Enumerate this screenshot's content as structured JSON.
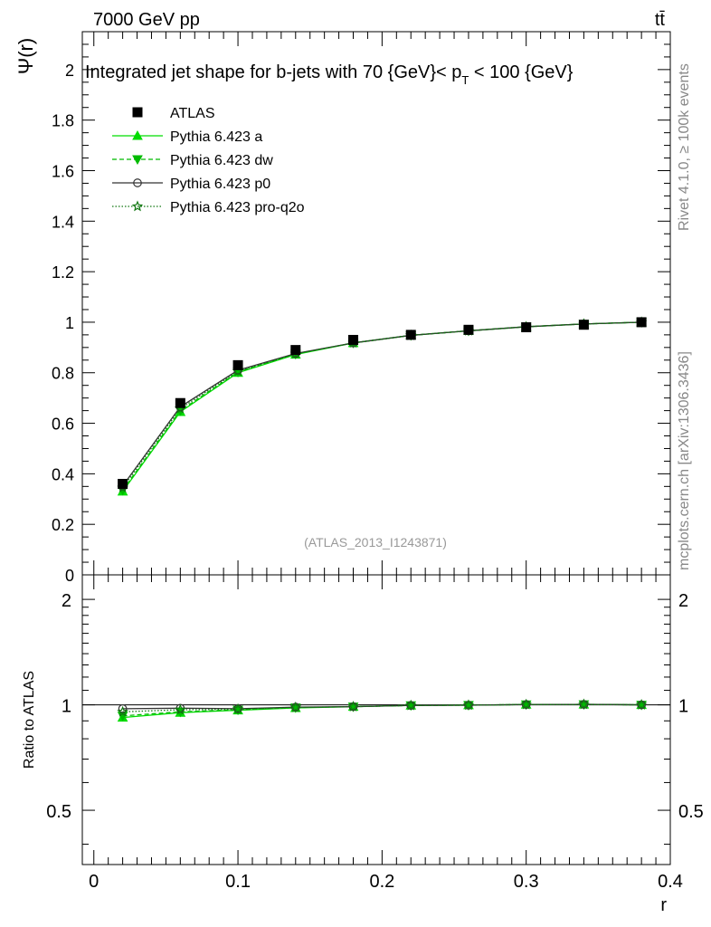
{
  "header": {
    "energy_label": "7000 GeV pp",
    "process_label": "tt̄"
  },
  "side_labels": {
    "rivet": "Rivet 4.1.0, ≥ 100k events",
    "source": "mcplots.cern.ch [arXiv:1306.3436]"
  },
  "chart_data": [
    {
      "type": "line",
      "title": "Integrated jet shape for b-jets with 70 {GeV}< p_T < 100 {GeV}",
      "title_parts": {
        "before": "Integrated jet shape for b-jets with 70 {GeV}< p",
        "sub": "T",
        "after": " < 100 {GeV}"
      },
      "ylabel": "Ψ(r)",
      "xlabel": "",
      "watermark": "(ATLAS_2013_I1243871)",
      "xlim": [
        -0.008,
        0.4
      ],
      "ylim": [
        0,
        2.15
      ],
      "yticks": [
        0,
        0.2,
        0.4,
        0.6,
        0.8,
        1,
        1.2,
        1.4,
        1.6,
        1.8,
        2
      ],
      "ytick_labels": [
        "0",
        "0.2",
        "0.4",
        "0.6",
        "0.8",
        "1",
        "1.2",
        "1.4",
        "1.6",
        "1.8",
        "2"
      ],
      "x": [
        0.02,
        0.06,
        0.1,
        0.14,
        0.18,
        0.22,
        0.26,
        0.3,
        0.34,
        0.38
      ],
      "data": {
        "name": "ATLAS",
        "values": [
          0.36,
          0.68,
          0.83,
          0.89,
          0.93,
          0.95,
          0.97,
          0.98,
          0.99,
          1.0
        ]
      },
      "series": [
        {
          "name": "Pythia 6.423 a",
          "color": "#00dd00",
          "marker": "triangle-up",
          "dash": "",
          "values": [
            0.33,
            0.645,
            0.8,
            0.872,
            0.918,
            0.948,
            0.966,
            0.982,
            0.993,
            1.0
          ]
        },
        {
          "name": "Pythia 6.423 dw",
          "color": "#00bb00",
          "marker": "triangle-down",
          "dash": "5,3",
          "values": [
            0.335,
            0.65,
            0.803,
            0.874,
            0.918,
            0.948,
            0.966,
            0.982,
            0.993,
            1.0
          ]
        },
        {
          "name": "Pythia 6.423 p0",
          "color": "#333333",
          "marker": "circle-open",
          "dash": "",
          "values": [
            0.352,
            0.665,
            0.81,
            0.876,
            0.918,
            0.948,
            0.966,
            0.982,
            0.993,
            1.0
          ]
        },
        {
          "name": "Pythia 6.423 pro-q2o",
          "color": "#117711",
          "marker": "star-open",
          "dash": "1.5,2",
          "values": [
            0.345,
            0.658,
            0.806,
            0.875,
            0.918,
            0.948,
            0.966,
            0.982,
            0.993,
            1.0
          ]
        }
      ],
      "legend_position": "top-left"
    },
    {
      "type": "line",
      "title": "",
      "ylabel": "Ratio to ATLAS",
      "xlabel": "r",
      "xlim": [
        -0.008,
        0.4
      ],
      "ylim": [
        0.35,
        2.35
      ],
      "yscale": "log",
      "yticks": [
        0.5,
        1,
        2
      ],
      "ytick_labels": [
        "0.5",
        "1",
        "2"
      ],
      "xticks": [
        0,
        0.1,
        0.2,
        0.3,
        0.4
      ],
      "xtick_labels": [
        "0",
        "0.1",
        "0.2",
        "0.3",
        "0.4"
      ],
      "x": [
        0.02,
        0.06,
        0.1,
        0.14,
        0.18,
        0.22,
        0.26,
        0.3,
        0.34,
        0.38
      ],
      "series": [
        {
          "name": "Pythia 6.423 a",
          "color": "#00dd00",
          "marker": "triangle-up",
          "dash": "",
          "values": [
            0.92,
            0.95,
            0.965,
            0.98,
            0.988,
            0.996,
            0.998,
            1.002,
            1.003,
            1.0
          ]
        },
        {
          "name": "Pythia 6.423 dw",
          "color": "#00bb00",
          "marker": "triangle-down",
          "dash": "5,3",
          "values": [
            0.93,
            0.955,
            0.968,
            0.982,
            0.988,
            0.996,
            0.998,
            1.002,
            1.003,
            1.0
          ]
        },
        {
          "name": "Pythia 6.423 p0",
          "color": "#333333",
          "marker": "circle-open",
          "dash": "",
          "values": [
            0.975,
            0.978,
            0.975,
            0.985,
            0.988,
            0.996,
            0.998,
            1.002,
            1.003,
            1.0
          ]
        },
        {
          "name": "Pythia 6.423 pro-q2o",
          "color": "#117711",
          "marker": "star-open",
          "dash": "1.5,2",
          "values": [
            0.955,
            0.968,
            0.972,
            0.983,
            0.988,
            0.996,
            0.998,
            1.002,
            1.003,
            1.0
          ]
        }
      ]
    }
  ]
}
